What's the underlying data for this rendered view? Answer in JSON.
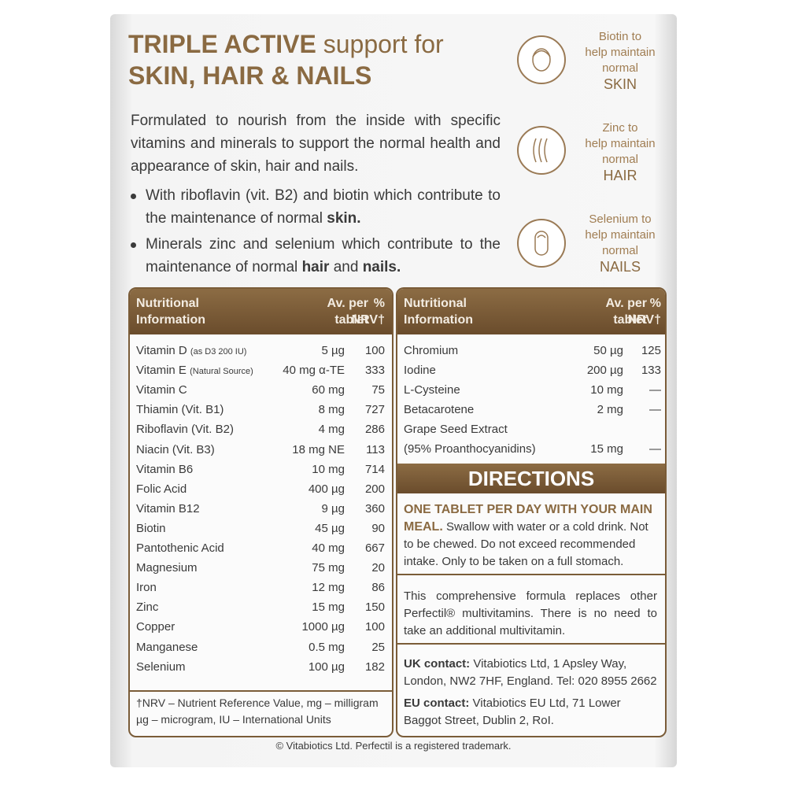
{
  "header": {
    "title_bold": "TRIPLE ACTIVE",
    "title_rest": "support for",
    "title_line2": "SKIN, HAIR & NAILS"
  },
  "intro": "Formulated to nourish from the inside with specific vitamins and minerals to support the normal health and appearance of skin, hair and nails.",
  "bullets": [
    [
      "With riboflavin (vit. B2) and biotin which contribute to the maintenance of normal ",
      "skin."
    ],
    [
      "Minerals zinc and selenium which contribute to the maintenance of normal ",
      "hair",
      " and ",
      "nails."
    ]
  ],
  "benefits": [
    {
      "lines": [
        "Biotin to",
        "help maintain",
        "normal",
        "SKIN"
      ]
    },
    {
      "lines": [
        "Zinc to",
        "help maintain",
        "normal",
        "HAIR"
      ]
    },
    {
      "lines": [
        "Selenium to",
        "help maintain",
        "normal",
        "NAILS"
      ]
    }
  ],
  "left_table": {
    "headers": [
      [
        "Nutritional",
        "Information"
      ],
      [
        "Av. per",
        "tablet"
      ],
      [
        "%",
        "NRV†"
      ]
    ],
    "rows": [
      {
        "name": "Vitamin D",
        "note": "(as D3 200 IU)",
        "amount": "5 µg",
        "nrv": 100
      },
      {
        "name": "Vitamin E",
        "note": "(Natural Source)",
        "amount": "40 mg α-TE",
        "nrv": 333
      },
      {
        "name": "Vitamin C",
        "amount": "60 mg",
        "nrv": 75
      },
      {
        "name": "Thiamin (Vit. B1)",
        "amount": "8 mg",
        "nrv": 727
      },
      {
        "name": "Riboflavin (Vit. B2)",
        "amount": "4 mg",
        "nrv": 286
      },
      {
        "name": "Niacin (Vit. B3)",
        "amount": "18 mg NE",
        "nrv": 113
      },
      {
        "name": "Vitamin B6",
        "amount": "10 mg",
        "nrv": 714
      },
      {
        "name": "Folic Acid",
        "amount": "400 µg",
        "nrv": 200
      },
      {
        "name": "Vitamin B12",
        "amount": "9 µg",
        "nrv": 360
      },
      {
        "name": "Biotin",
        "amount": "45 µg",
        "nrv": 90
      },
      {
        "name": "Pantothenic Acid",
        "amount": "40 mg",
        "nrv": 667
      },
      {
        "name": "Magnesium",
        "amount": "75 mg",
        "nrv": 20
      },
      {
        "name": "Iron",
        "amount": "12 mg",
        "nrv": 86
      },
      {
        "name": "Zinc",
        "amount": "15 mg",
        "nrv": 150
      },
      {
        "name": "Copper",
        "amount": "1000 µg",
        "nrv": 100
      },
      {
        "name": "Manganese",
        "amount": "0.5 mg",
        "nrv": 25
      },
      {
        "name": "Selenium",
        "amount": "100 µg",
        "nrv": 182
      }
    ],
    "footnote": "†NRV – Nutrient Reference Value, mg – milligram µg – microgram, IU – International Units"
  },
  "right_table": {
    "headers": [
      [
        "Nutritional",
        "Information"
      ],
      [
        "Av. per",
        "tablet"
      ],
      [
        "%",
        "NRV†"
      ]
    ],
    "rows": [
      {
        "name": "Chromium",
        "amount": "50 µg",
        "nrv": 125
      },
      {
        "name": "Iodine",
        "amount": "200 µg",
        "nrv": 133
      },
      {
        "name": "L-Cysteine",
        "amount": "10 mg",
        "nrv": "—"
      },
      {
        "name": "Betacarotene",
        "amount": "2 mg",
        "nrv": "—"
      },
      {
        "name": "Grape Seed Extract",
        "name2": "(95% Proanthocyanidins)",
        "amount": "15 mg",
        "nrv": "—"
      }
    ]
  },
  "directions": {
    "title": "DIRECTIONS",
    "bold_text": "ONE TABLET PER DAY WITH YOUR MAIN MEAL.",
    "text": "Swallow with water or a cold drink. Not to be chewed. Do not exceed recommended intake. Only to be taken on a full stomach."
  },
  "note": "This comprehensive formula replaces other Perfectil® multivitamins. There is no need to take an additional multivitamin.",
  "contacts": [
    {
      "label": "UK contact:",
      "text": "Vitabiotics Ltd, 1 Apsley Way, London, NW2 7HF, England. Tel: 020 8955 2662"
    },
    {
      "label": "EU contact:",
      "text": "Vitabiotics EU Ltd, 71 Lower Baggot Street, Dublin 2, RoI."
    }
  ],
  "copyright": "© Vitabiotics Ltd. Perfectil is a registered trademark."
}
